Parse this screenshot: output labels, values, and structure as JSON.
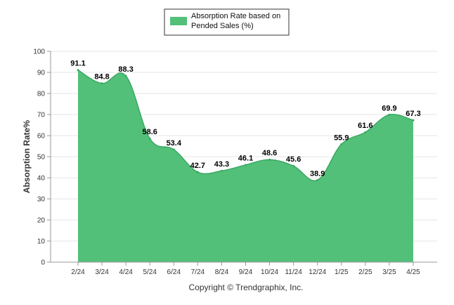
{
  "colors": {
    "area_fill": "#53c07a",
    "area_stroke": "#3aa862",
    "grid": "#e6e6e6",
    "axis": "#999999"
  },
  "footer": "Copyright © Trendgraphix, Inc.",
  "chart_data": {
    "type": "area",
    "title": "",
    "xlabel": "",
    "ylabel": "Absorption Rate%",
    "ylim": [
      0,
      100
    ],
    "yticks": [
      0,
      10,
      20,
      30,
      40,
      50,
      60,
      70,
      80,
      90,
      100
    ],
    "grid": true,
    "legend_position": "top-center",
    "categories": [
      "2/24",
      "3/24",
      "4/24",
      "5/24",
      "6/24",
      "7/24",
      "8/24",
      "9/24",
      "10/24",
      "11/24",
      "12/24",
      "1/25",
      "2/25",
      "3/25",
      "4/25"
    ],
    "series": [
      {
        "name": "Absorption Rate based on Pended Sales (%)",
        "values": [
          91.1,
          84.8,
          88.3,
          58.6,
          53.4,
          42.7,
          43.3,
          46.1,
          48.6,
          45.6,
          38.9,
          55.9,
          61.6,
          69.9,
          67.3
        ]
      }
    ]
  }
}
